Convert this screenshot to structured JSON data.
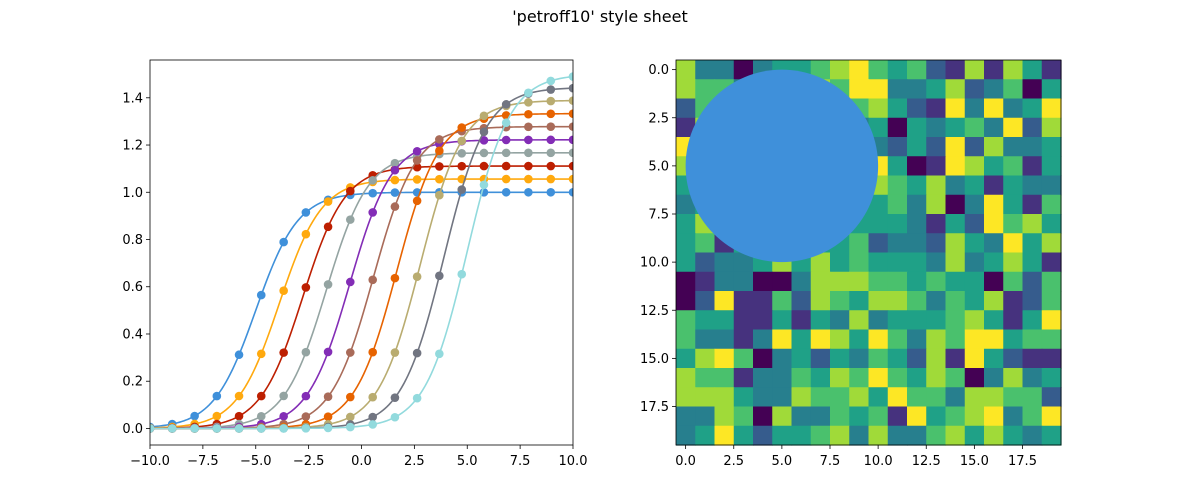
{
  "figure": {
    "title": "'petroff10' style sheet"
  },
  "colors": {
    "palette": [
      "#3f90da",
      "#ffa90e",
      "#bd1f01",
      "#94a4a2",
      "#832db6",
      "#a96b59",
      "#e76300",
      "#b9ac70",
      "#717581",
      "#92dadd"
    ],
    "circle": "#3f90da",
    "viridis": [
      "#440154",
      "#46327e",
      "#365c8d",
      "#277f8e",
      "#1fa187",
      "#4ac16d",
      "#a0da39",
      "#fde725"
    ]
  },
  "chart_data": [
    {
      "type": "line",
      "title": "",
      "xlabel": "",
      "ylabel": "",
      "xlim": [
        -10,
        10
      ],
      "ylim": [
        -0.07,
        1.56
      ],
      "x_ticks": [
        -10,
        -7.5,
        -5,
        -2.5,
        0,
        2.5,
        5,
        7.5,
        10
      ],
      "x_tick_labels": [
        "−10.0",
        "−7.5",
        "−5.0",
        "−2.5",
        "0.0",
        "2.5",
        "5.0",
        "7.5",
        "10.0"
      ],
      "y_ticks": [
        0,
        0.2,
        0.4,
        0.6,
        0.8,
        1.0,
        1.2,
        1.4
      ],
      "y_tick_labels": [
        "0.0",
        "0.2",
        "0.4",
        "0.6",
        "0.8",
        "1.0",
        "1.2",
        "1.4"
      ],
      "grid": false,
      "markers_x": [
        -10,
        -8.95,
        -7.89,
        -6.84,
        -5.79,
        -4.74,
        -3.68,
        -2.63,
        -1.58,
        -0.53,
        0.53,
        1.58,
        2.63,
        3.68,
        4.74,
        5.79,
        6.84,
        7.89,
        8.95,
        10
      ],
      "series": [
        {
          "amplitude": 1.0,
          "shift": -5.0,
          "color_index": 0
        },
        {
          "amplitude": 1.056,
          "shift": -3.89,
          "color_index": 1
        },
        {
          "amplitude": 1.111,
          "shift": -2.78,
          "color_index": 2
        },
        {
          "amplitude": 1.167,
          "shift": -1.67,
          "color_index": 3
        },
        {
          "amplitude": 1.222,
          "shift": -0.56,
          "color_index": 4
        },
        {
          "amplitude": 1.278,
          "shift": 0.56,
          "color_index": 5
        },
        {
          "amplitude": 1.333,
          "shift": 1.67,
          "color_index": 6
        },
        {
          "amplitude": 1.389,
          "shift": 2.78,
          "color_index": 7
        },
        {
          "amplitude": 1.444,
          "shift": 3.89,
          "color_index": 8
        },
        {
          "amplitude": 1.5,
          "shift": 5.0,
          "color_index": 9
        }
      ]
    },
    {
      "type": "heatmap",
      "title": "",
      "xlabel": "",
      "ylabel": "",
      "xlim": [
        -0.5,
        19.5
      ],
      "ylim": [
        19.5,
        -0.5
      ],
      "x_ticks": [
        0,
        2.5,
        5,
        7.5,
        10,
        12.5,
        15,
        17.5
      ],
      "x_tick_labels": [
        "0.0",
        "2.5",
        "5.0",
        "7.5",
        "10.0",
        "12.5",
        "15.0",
        "17.5"
      ],
      "y_ticks": [
        0,
        2.5,
        5,
        7.5,
        10,
        12.5,
        15,
        17.5
      ],
      "y_tick_labels": [
        "0.0",
        "2.5",
        "5.0",
        "7.5",
        "10.0",
        "12.5",
        "15.0",
        "17.5"
      ],
      "grid": false,
      "colormap": "viridis",
      "values": [
        [
          6,
          3,
          3,
          0,
          3,
          4,
          4,
          5,
          6,
          7,
          5,
          4,
          5,
          2,
          1,
          6,
          1,
          6,
          4,
          1
        ],
        [
          6,
          5,
          5,
          3,
          4,
          4,
          4,
          6,
          5,
          7,
          7,
          3,
          3,
          4,
          6,
          2,
          3,
          5,
          0,
          4
        ],
        [
          2,
          5,
          4,
          4,
          4,
          4,
          4,
          4,
          7,
          5,
          6,
          4,
          2,
          1,
          7,
          3,
          7,
          3,
          4,
          7
        ],
        [
          1,
          6,
          5,
          5,
          5,
          4,
          4,
          4,
          4,
          3,
          4,
          0,
          4,
          3,
          4,
          5,
          3,
          7,
          2,
          6
        ],
        [
          7,
          5,
          4,
          4,
          4,
          4,
          4,
          4,
          4,
          4,
          3,
          2,
          4,
          2,
          7,
          2,
          6,
          3,
          3,
          4
        ],
        [
          6,
          6,
          4,
          4,
          4,
          4,
          4,
          4,
          4,
          4,
          7,
          4,
          0,
          1,
          7,
          6,
          4,
          5,
          1,
          4
        ],
        [
          4,
          5,
          4,
          4,
          4,
          4,
          4,
          4,
          4,
          4,
          6,
          5,
          4,
          6,
          3,
          4,
          1,
          4,
          3,
          3
        ],
        [
          3,
          4,
          4,
          4,
          4,
          4,
          4,
          4,
          4,
          4,
          4,
          5,
          3,
          6,
          0,
          3,
          7,
          4,
          1,
          5
        ],
        [
          4,
          6,
          4,
          4,
          4,
          4,
          4,
          4,
          4,
          4,
          4,
          4,
          3,
          1,
          4,
          2,
          7,
          5,
          6,
          4
        ],
        [
          4,
          5,
          1,
          4,
          4,
          4,
          4,
          4,
          4,
          5,
          2,
          3,
          3,
          2,
          6,
          4,
          3,
          7,
          4,
          6
        ],
        [
          4,
          2,
          3,
          3,
          4,
          6,
          4,
          6,
          4,
          5,
          4,
          4,
          4,
          3,
          6,
          3,
          4,
          6,
          4,
          1
        ],
        [
          0,
          1,
          3,
          3,
          0,
          0,
          3,
          6,
          6,
          6,
          5,
          5,
          4,
          5,
          4,
          4,
          0,
          5,
          2,
          5
        ],
        [
          0,
          2,
          7,
          1,
          1,
          5,
          2,
          6,
          5,
          4,
          6,
          6,
          5,
          3,
          5,
          4,
          6,
          1,
          2,
          5
        ],
        [
          5,
          4,
          4,
          1,
          1,
          4,
          1,
          4,
          3,
          6,
          3,
          4,
          4,
          4,
          5,
          6,
          4,
          1,
          4,
          7
        ],
        [
          5,
          3,
          3,
          1,
          3,
          7,
          4,
          7,
          6,
          4,
          7,
          5,
          3,
          6,
          5,
          7,
          7,
          4,
          5,
          5
        ],
        [
          4,
          6,
          7,
          5,
          0,
          3,
          4,
          2,
          4,
          3,
          5,
          4,
          2,
          6,
          1,
          7,
          4,
          2,
          1,
          1
        ],
        [
          6,
          5,
          5,
          1,
          3,
          3,
          5,
          4,
          6,
          5,
          7,
          5,
          4,
          6,
          5,
          0,
          3,
          6,
          3,
          4
        ],
        [
          6,
          6,
          6,
          4,
          3,
          3,
          6,
          5,
          5,
          6,
          4,
          7,
          5,
          5,
          3,
          6,
          6,
          5,
          5,
          2
        ],
        [
          3,
          3,
          6,
          5,
          0,
          6,
          3,
          3,
          5,
          4,
          5,
          1,
          7,
          4,
          5,
          6,
          7,
          3,
          5,
          7
        ],
        [
          3,
          4,
          7,
          4,
          2,
          4,
          4,
          5,
          6,
          3,
          6,
          3,
          3,
          5,
          6,
          4,
          6,
          4,
          3,
          4
        ]
      ],
      "circle": {
        "center": [
          5,
          5
        ],
        "radius": 5
      }
    }
  ]
}
